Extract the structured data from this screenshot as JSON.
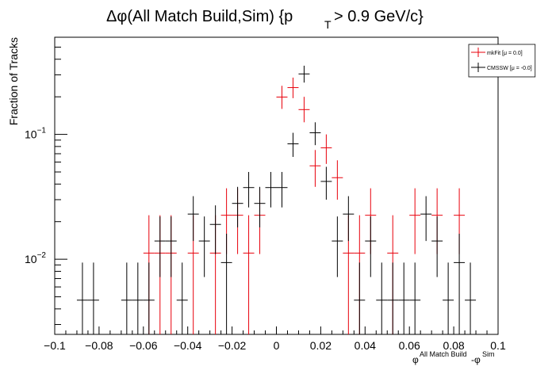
{
  "chart_data": {
    "type": "scatter",
    "title_main": "Δφ(All Match Build,Sim) {p",
    "title_sub": "T",
    "title_tail": " > 0.9 GeV/c}",
    "ylabel": "Fraction of Tracks",
    "xlabel_base": "φ",
    "xlabel_sup1": "All Match Build",
    "xlabel_mid": "-φ",
    "xlabel_sup2": "Sim",
    "xlim": [
      -0.1,
      0.1
    ],
    "ylim": [
      0.0025,
      0.6
    ],
    "yscale": "log",
    "xticks": [
      -0.1,
      -0.08,
      -0.06,
      -0.04,
      -0.02,
      0,
      0.02,
      0.04,
      0.06,
      0.08,
      0.1
    ],
    "xtick_labels": [
      "−0.1",
      "−0.08",
      "−0.06",
      "−0.04",
      "−0.02",
      "0",
      "0.02",
      "0.04",
      "0.06",
      "0.08",
      "0.1"
    ],
    "yticks_major": [
      {
        "value": 0.01,
        "base": "10",
        "exp": "−2"
      },
      {
        "value": 0.1,
        "base": "10",
        "exp": "−1"
      }
    ],
    "bin_half_width": 0.0025,
    "legend_position": "top-right",
    "series": [
      {
        "name": "mkFit  [μ =  0.0]",
        "color": "#e8000b",
        "points": [
          {
            "x": -0.0575,
            "y": 0.0112,
            "lo": 0.0025,
            "hi": 0.0225
          },
          {
            "x": -0.0525,
            "y": 0.0112,
            "lo": 0.0025,
            "hi": 0.0225
          },
          {
            "x": -0.0475,
            "y": 0.0112,
            "lo": 0.0025,
            "hi": 0.0225
          },
          {
            "x": -0.0375,
            "y": 0.0112,
            "lo": 0.0025,
            "hi": 0.0225
          },
          {
            "x": -0.0275,
            "y": 0.0112,
            "lo": 0.0025,
            "hi": 0.0225
          },
          {
            "x": -0.0225,
            "y": 0.0225,
            "lo": 0.011,
            "hi": 0.037
          },
          {
            "x": -0.0175,
            "y": 0.0225,
            "lo": 0.011,
            "hi": 0.037
          },
          {
            "x": -0.0125,
            "y": 0.0112,
            "lo": 0.0025,
            "hi": 0.0225
          },
          {
            "x": -0.0075,
            "y": 0.0225,
            "lo": 0.011,
            "hi": 0.037
          },
          {
            "x": 0.0025,
            "y": 0.199,
            "lo": 0.16,
            "hi": 0.245
          },
          {
            "x": 0.0075,
            "y": 0.237,
            "lo": 0.195,
            "hi": 0.285
          },
          {
            "x": 0.0125,
            "y": 0.158,
            "lo": 0.125,
            "hi": 0.2
          },
          {
            "x": 0.0175,
            "y": 0.056,
            "lo": 0.038,
            "hi": 0.075
          },
          {
            "x": 0.0225,
            "y": 0.078,
            "lo": 0.058,
            "hi": 0.1
          },
          {
            "x": 0.0275,
            "y": 0.045,
            "lo": 0.03,
            "hi": 0.062
          },
          {
            "x": 0.0325,
            "y": 0.0112,
            "lo": 0.0025,
            "hi": 0.0225
          },
          {
            "x": 0.0375,
            "y": 0.0112,
            "lo": 0.0025,
            "hi": 0.0225
          },
          {
            "x": 0.0425,
            "y": 0.0225,
            "lo": 0.011,
            "hi": 0.037
          },
          {
            "x": 0.0525,
            "y": 0.0112,
            "lo": 0.0025,
            "hi": 0.0225
          },
          {
            "x": 0.0625,
            "y": 0.0225,
            "lo": 0.011,
            "hi": 0.037
          },
          {
            "x": 0.0725,
            "y": 0.0225,
            "lo": 0.011,
            "hi": 0.037
          },
          {
            "x": 0.0825,
            "y": 0.0225,
            "lo": 0.011,
            "hi": 0.037
          }
        ]
      },
      {
        "name": "CMSSW  [μ = -0.0]",
        "color": "#000000",
        "points": [
          {
            "x": -0.0875,
            "y": 0.0047,
            "lo": 0.0025,
            "hi": 0.0094
          },
          {
            "x": -0.0825,
            "y": 0.0047,
            "lo": 0.0025,
            "hi": 0.0094
          },
          {
            "x": -0.0675,
            "y": 0.0047,
            "lo": 0.0025,
            "hi": 0.0094
          },
          {
            "x": -0.0625,
            "y": 0.0047,
            "lo": 0.0025,
            "hi": 0.0094
          },
          {
            "x": -0.0575,
            "y": 0.0047,
            "lo": 0.0025,
            "hi": 0.0094
          },
          {
            "x": -0.0525,
            "y": 0.014,
            "lo": 0.0072,
            "hi": 0.022
          },
          {
            "x": -0.0475,
            "y": 0.014,
            "lo": 0.0072,
            "hi": 0.022
          },
          {
            "x": -0.0425,
            "y": 0.0047,
            "lo": 0.0025,
            "hi": 0.0094
          },
          {
            "x": -0.0375,
            "y": 0.023,
            "lo": 0.014,
            "hi": 0.032
          },
          {
            "x": -0.0325,
            "y": 0.014,
            "lo": 0.0072,
            "hi": 0.022
          },
          {
            "x": -0.0275,
            "y": 0.019,
            "lo": 0.011,
            "hi": 0.027
          },
          {
            "x": -0.0225,
            "y": 0.0094,
            "lo": 0.0025,
            "hi": 0.016
          },
          {
            "x": -0.0175,
            "y": 0.028,
            "lo": 0.018,
            "hi": 0.038
          },
          {
            "x": -0.0125,
            "y": 0.0375,
            "lo": 0.026,
            "hi": 0.05
          },
          {
            "x": -0.0075,
            "y": 0.028,
            "lo": 0.018,
            "hi": 0.038
          },
          {
            "x": -0.0025,
            "y": 0.0375,
            "lo": 0.026,
            "hi": 0.05
          },
          {
            "x": 0.0025,
            "y": 0.0375,
            "lo": 0.026,
            "hi": 0.05
          },
          {
            "x": 0.0075,
            "y": 0.084,
            "lo": 0.066,
            "hi": 0.103
          },
          {
            "x": 0.0125,
            "y": 0.305,
            "lo": 0.26,
            "hi": 0.355
          },
          {
            "x": 0.0175,
            "y": 0.103,
            "lo": 0.082,
            "hi": 0.125
          },
          {
            "x": 0.0225,
            "y": 0.042,
            "lo": 0.03,
            "hi": 0.055
          },
          {
            "x": 0.0275,
            "y": 0.014,
            "lo": 0.0072,
            "hi": 0.022
          },
          {
            "x": 0.0325,
            "y": 0.023,
            "lo": 0.014,
            "hi": 0.032
          },
          {
            "x": 0.0375,
            "y": 0.0047,
            "lo": 0.0025,
            "hi": 0.0094
          },
          {
            "x": 0.0425,
            "y": 0.014,
            "lo": 0.0072,
            "hi": 0.022
          },
          {
            "x": 0.0475,
            "y": 0.0047,
            "lo": 0.0025,
            "hi": 0.0094
          },
          {
            "x": 0.0525,
            "y": 0.0047,
            "lo": 0.0025,
            "hi": 0.0094
          },
          {
            "x": 0.0575,
            "y": 0.0047,
            "lo": 0.0025,
            "hi": 0.0094
          },
          {
            "x": 0.0625,
            "y": 0.0047,
            "lo": 0.0025,
            "hi": 0.0094
          },
          {
            "x": 0.0675,
            "y": 0.023,
            "lo": 0.014,
            "hi": 0.032
          },
          {
            "x": 0.0725,
            "y": 0.014,
            "lo": 0.0072,
            "hi": 0.022
          },
          {
            "x": 0.0775,
            "y": 0.0047,
            "lo": 0.0025,
            "hi": 0.0094
          },
          {
            "x": 0.0825,
            "y": 0.0094,
            "lo": 0.0025,
            "hi": 0.016
          },
          {
            "x": 0.0875,
            "y": 0.0047,
            "lo": 0.0025,
            "hi": 0.0094
          }
        ]
      }
    ]
  }
}
